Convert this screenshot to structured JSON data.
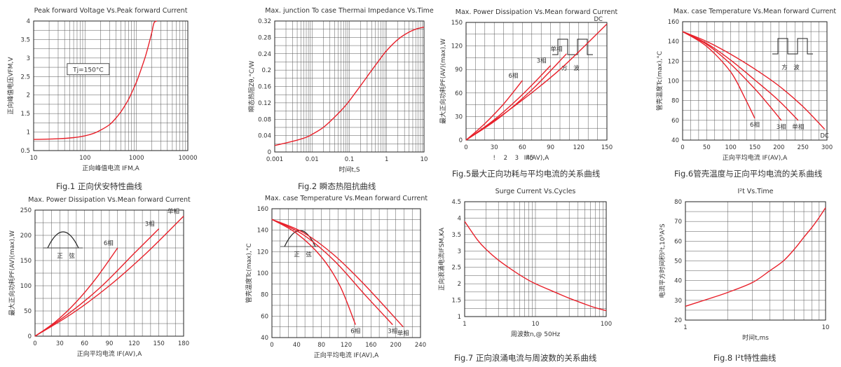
{
  "colors": {
    "curve": "#e8202a",
    "grid": "#555555",
    "frame": "#222222",
    "text": "#333333"
  },
  "captions": [
    "Fig.1 正向伏安特性曲线",
    "Fig.2 瞬态热阻抗曲线",
    "Fig.5最大正向功耗与平均电流的关系曲线",
    "Fig.6管壳温度与正向平均电流的关系曲线",
    "",
    "",
    "Fig.7 正向浪涌电流与周波数的关系曲线",
    "Fig.8 I²t特性曲线"
  ],
  "chart_data": [
    {
      "type": "line",
      "title": "Peak forward Voltage Vs.Peak forward Current",
      "xlabel": "正向峰值电流 IFM,A",
      "ylabel": "正向峰值电压VFM,V",
      "xscale": "log",
      "xlim": [
        10,
        10000
      ],
      "ylim": [
        0.5,
        4
      ],
      "xticks": [
        10,
        100,
        1000,
        10000
      ],
      "yticks": [
        0.5,
        1,
        1.5,
        2,
        2.5,
        3,
        3.5,
        4
      ],
      "annotations": [
        {
          "text": "Tj=150°C"
        }
      ],
      "series": [
        {
          "x": [
            10,
            30,
            60,
            100,
            150,
            200,
            300,
            400,
            500,
            600,
            700,
            800,
            1000,
            1200,
            1500,
            1800,
            2000,
            2200,
            2500
          ],
          "y": [
            0.8,
            0.82,
            0.85,
            0.9,
            0.97,
            1.05,
            1.2,
            1.38,
            1.55,
            1.72,
            1.88,
            2.05,
            2.35,
            2.65,
            3.05,
            3.45,
            3.7,
            3.95,
            4.0
          ]
        }
      ]
    },
    {
      "type": "line",
      "title": "Max. junction To case Thermai Impedance Vs.Time",
      "xlabel": "时间t,S",
      "ylabel": "瞬态热阻Zθ,°C/W",
      "xscale": "log",
      "xlim": [
        0.001,
        10
      ],
      "ylim": [
        0,
        0.32
      ],
      "xticks": [
        0.001,
        0.01,
        0.1,
        1,
        10
      ],
      "yticks": [
        0,
        0.04,
        0.08,
        0.12,
        0.16,
        0.2,
        0.24,
        0.28,
        0.32
      ],
      "series": [
        {
          "x": [
            0.001,
            0.002,
            0.004,
            0.007,
            0.01,
            0.02,
            0.04,
            0.07,
            0.1,
            0.2,
            0.4,
            0.7,
            1,
            2,
            4,
            7,
            10
          ],
          "y": [
            0.016,
            0.022,
            0.029,
            0.036,
            0.043,
            0.06,
            0.085,
            0.108,
            0.125,
            0.162,
            0.2,
            0.23,
            0.248,
            0.275,
            0.293,
            0.302,
            0.305
          ]
        }
      ]
    },
    {
      "type": "line",
      "title": "Max. Power Dissipation Vs.Mean forward Current",
      "xlabel": "IF(AV),A",
      "ylabel": "最大正向功耗PF(AV)(max),W",
      "xlim": [
        0,
        150
      ],
      "ylim": [
        0,
        150
      ],
      "xticks": [
        0,
        30,
        60,
        90,
        120,
        150
      ],
      "yticks": [
        0,
        30,
        60,
        90,
        120,
        150
      ],
      "extra_labels": [
        "!",
        "2",
        "3",
        "45"
      ],
      "inset": "方　波",
      "series": [
        {
          "name": "6相",
          "x": [
            0,
            20,
            40,
            60
          ],
          "y": [
            0,
            21,
            46,
            76
          ]
        },
        {
          "name": "3相",
          "x": [
            0,
            30,
            60,
            90
          ],
          "y": [
            0,
            26,
            58,
            95
          ]
        },
        {
          "name": "单相",
          "x": [
            0,
            35,
            70,
            107
          ],
          "y": [
            0,
            28,
            64,
            110
          ]
        },
        {
          "name": "DC",
          "x": [
            0,
            50,
            100,
            150
          ],
          "y": [
            0,
            42,
            90,
            148
          ]
        }
      ]
    },
    {
      "type": "line",
      "title": "Max. case Temperature Vs.Mean forward Current",
      "xlabel": "正向平均电流 IF(AV),A",
      "ylabel": "管壳温度Tc(max),°C",
      "xlim": [
        0,
        300
      ],
      "ylim": [
        40,
        160
      ],
      "xticks": [
        0,
        50,
        100,
        150,
        200,
        250,
        300
      ],
      "yticks": [
        40,
        60,
        80,
        100,
        120,
        140,
        160
      ],
      "inset": "方　波",
      "series": [
        {
          "name": "6相",
          "x": [
            0,
            50,
            100,
            130,
            150
          ],
          "y": [
            150,
            135,
            109,
            82,
            62
          ]
        },
        {
          "name": "3相",
          "x": [
            0,
            50,
            100,
            150,
            180,
            205
          ],
          "y": [
            150,
            137,
            117,
            92,
            75,
            60
          ]
        },
        {
          "name": "单相",
          "x": [
            0,
            50,
            100,
            150,
            200,
            240
          ],
          "y": [
            150,
            138,
            121,
            101,
            80,
            60
          ]
        },
        {
          "name": "DC",
          "x": [
            0,
            50,
            100,
            150,
            200,
            250,
            295
          ],
          "y": [
            150,
            140,
            127,
            112,
            95,
            74,
            51
          ]
        }
      ]
    },
    {
      "type": "line",
      "title": "Max. Power Dissipation Vs.Mean forward Current",
      "xlabel": "正向平均电流 IF(AV),A",
      "ylabel": "最大正向功耗PF(AV)(max),W",
      "xlim": [
        0,
        180
      ],
      "ylim": [
        0,
        250
      ],
      "xticks": [
        0,
        30,
        60,
        90,
        120,
        150,
        180
      ],
      "yticks": [
        0,
        50,
        100,
        150,
        200,
        250
      ],
      "inset": "正　弦",
      "series": [
        {
          "name": "6相",
          "x": [
            0,
            25,
            50,
            75,
            100
          ],
          "y": [
            0,
            29,
            68,
            117,
            175
          ]
        },
        {
          "name": "3相",
          "x": [
            0,
            40,
            80,
            120,
            150
          ],
          "y": [
            0,
            44,
            98,
            164,
            213
          ]
        },
        {
          "name": "单相",
          "x": [
            0,
            45,
            90,
            135,
            180
          ],
          "y": [
            0,
            45,
            100,
            165,
            238
          ]
        }
      ]
    },
    {
      "type": "line",
      "title": "Max. case Temperature Vs.Mean forward Current",
      "xlabel": "正向平均电流 IF(AV),A",
      "ylabel": "管壳温度Tc(max),°C",
      "xlim": [
        0,
        240
      ],
      "ylim": [
        40,
        160
      ],
      "xticks": [
        0,
        40,
        80,
        120,
        160,
        200,
        240
      ],
      "yticks": [
        40,
        60,
        80,
        100,
        120,
        140,
        160
      ],
      "inset": "正　弦",
      "series": [
        {
          "name": "6相",
          "x": [
            0,
            40,
            80,
            110,
            135
          ],
          "y": [
            150,
            137,
            115,
            88,
            52
          ]
        },
        {
          "name": "3相",
          "x": [
            0,
            50,
            100,
            150,
            195
          ],
          "y": [
            150,
            136,
            112,
            80,
            52
          ]
        },
        {
          "name": "单相",
          "x": [
            0,
            50,
            100,
            150,
            212
          ],
          "y": [
            150,
            138,
            117,
            89,
            50
          ]
        }
      ]
    },
    {
      "type": "line",
      "title": "Surge Current Vs.Cycles",
      "xlabel": "周波数n,@ 50Hz",
      "ylabel": "正向浪涌电流IFSM,KA",
      "xscale": "log",
      "xlim": [
        1,
        100
      ],
      "ylim": [
        1,
        4.5
      ],
      "xticks": [
        1,
        10,
        100
      ],
      "yticks": [
        1,
        1.5,
        2,
        2.5,
        3,
        3.5,
        4,
        4.5
      ],
      "series": [
        {
          "x": [
            1,
            1.5,
            2,
            3,
            5,
            7,
            10,
            20,
            30,
            50,
            70,
            100
          ],
          "y": [
            3.9,
            3.35,
            3.05,
            2.72,
            2.38,
            2.18,
            2.0,
            1.72,
            1.56,
            1.38,
            1.27,
            1.18
          ]
        }
      ]
    },
    {
      "type": "line",
      "title": "I²t Vs.Time",
      "xlabel": "时间t,ms",
      "ylabel": "电流平方时间积I²t,10³A²S",
      "xscale": "log",
      "xlim": [
        1,
        10
      ],
      "ylim": [
        20,
        80
      ],
      "xticks": [
        1,
        10
      ],
      "yticks": [
        20,
        30,
        40,
        50,
        60,
        70,
        80
      ],
      "series": [
        {
          "x": [
            1,
            1.5,
            2,
            3,
            4,
            5,
            6,
            7,
            8,
            9,
            10
          ],
          "y": [
            27,
            31,
            34,
            39,
            45,
            50,
            56,
            62,
            67,
            72,
            77
          ]
        }
      ]
    }
  ]
}
